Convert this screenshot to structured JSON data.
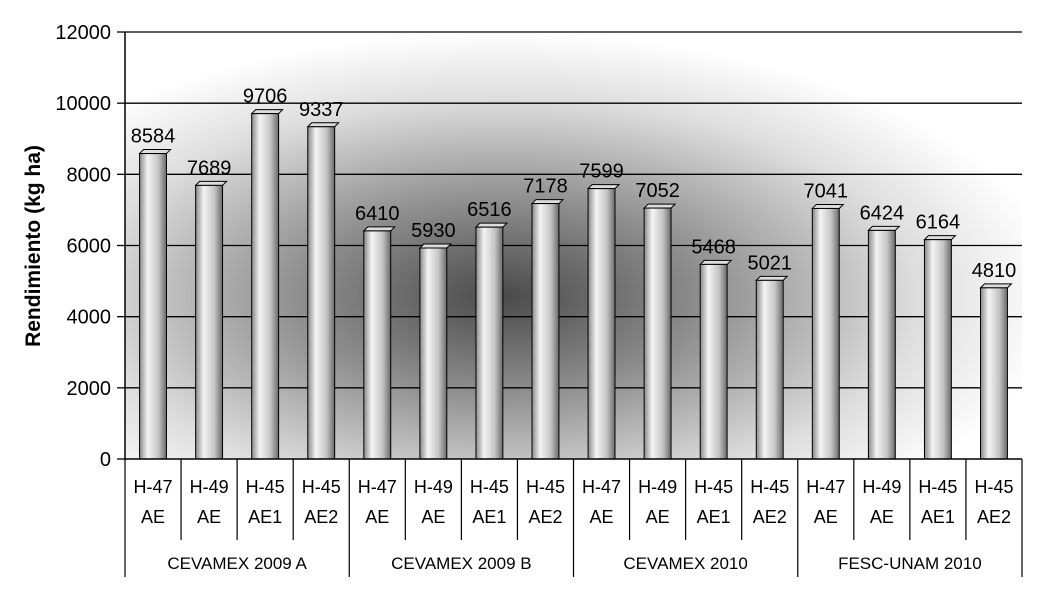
{
  "chart_data": {
    "type": "bar",
    "title": "",
    "ylabel": "Rendimiento (kg ha)",
    "xlabel": "",
    "ylim": [
      0,
      12000
    ],
    "yticks": [
      "0",
      "2000",
      "4000",
      "6000",
      "8000",
      "10000",
      "12000"
    ],
    "grid": true,
    "groups": [
      {
        "name": "CEVAMEX 2009 A",
        "categories": [
          [
            "H-47",
            "AE"
          ],
          [
            "H-49",
            "AE"
          ],
          [
            "H-45",
            "AE1"
          ],
          [
            "H-45",
            "AE2"
          ]
        ],
        "values": [
          8584,
          7689,
          9706,
          9337
        ]
      },
      {
        "name": "CEVAMEX 2009 B",
        "categories": [
          [
            "H-47",
            "AE"
          ],
          [
            "H-49",
            "AE"
          ],
          [
            "H-45",
            "AE1"
          ],
          [
            "H-45",
            "AE2"
          ]
        ],
        "values": [
          6410,
          5930,
          6516,
          7178
        ]
      },
      {
        "name": "CEVAMEX 2010",
        "categories": [
          [
            "H-47",
            "AE"
          ],
          [
            "H-49",
            "AE"
          ],
          [
            "H-45",
            "AE1"
          ],
          [
            "H-45",
            "AE2"
          ]
        ],
        "values": [
          7599,
          7052,
          5468,
          5021
        ]
      },
      {
        "name": "FESC-UNAM 2010",
        "categories": [
          [
            "H-47",
            "AE"
          ],
          [
            "H-49",
            "AE"
          ],
          [
            "H-45",
            "AE1"
          ],
          [
            "H-45",
            "AE2"
          ]
        ],
        "values": [
          7041,
          6424,
          6164,
          4810
        ]
      }
    ],
    "colors": {
      "bar_light": "#f4f4f4",
      "bar_dark": "#6a6a6a",
      "background": "#bdbdbd"
    }
  }
}
